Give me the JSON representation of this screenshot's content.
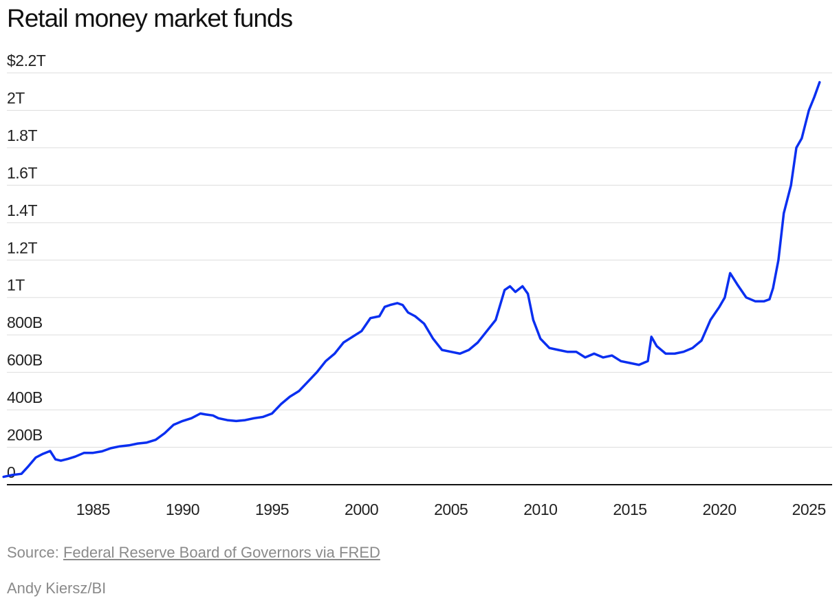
{
  "chart_data": {
    "type": "line",
    "title": "Retail money market funds",
    "xlabel": "",
    "ylabel": "",
    "y_unit": "billions USD",
    "xlim": [
      1979.8,
      2026.3
    ],
    "ylim": [
      0,
      2200
    ],
    "yticks": [
      {
        "value": 0,
        "label": "0"
      },
      {
        "value": 200,
        "label": "200B"
      },
      {
        "value": 400,
        "label": "400B"
      },
      {
        "value": 600,
        "label": "600B"
      },
      {
        "value": 800,
        "label": "800B"
      },
      {
        "value": 1000,
        "label": "1T"
      },
      {
        "value": 1200,
        "label": "1.2T"
      },
      {
        "value": 1400,
        "label": "1.4T"
      },
      {
        "value": 1600,
        "label": "1.6T"
      },
      {
        "value": 1800,
        "label": "1.8T"
      },
      {
        "value": 2000,
        "label": "2T"
      },
      {
        "value": 2200,
        "label": "$2.2T"
      }
    ],
    "xticks": [
      {
        "value": 1985,
        "label": "1985"
      },
      {
        "value": 1990,
        "label": "1990"
      },
      {
        "value": 1995,
        "label": "1995"
      },
      {
        "value": 2000,
        "label": "2000"
      },
      {
        "value": 2005,
        "label": "2005"
      },
      {
        "value": 2010,
        "label": "2010"
      },
      {
        "value": 2015,
        "label": "2015"
      },
      {
        "value": 2020,
        "label": "2020"
      },
      {
        "value": 2025,
        "label": "2025"
      }
    ],
    "grid": true,
    "series": [
      {
        "name": "Retail money market funds",
        "color": "#0a2ff0",
        "x": [
          1980.0,
          1980.5,
          1981.0,
          1981.4,
          1981.8,
          1982.2,
          1982.6,
          1982.9,
          1983.2,
          1983.6,
          1984.0,
          1984.5,
          1985.0,
          1985.5,
          1986.0,
          1986.5,
          1987.0,
          1987.5,
          1988.0,
          1988.5,
          1989.0,
          1989.5,
          1990.0,
          1990.5,
          1991.0,
          1991.3,
          1991.7,
          1992.0,
          1992.5,
          1993.0,
          1993.5,
          1994.0,
          1994.5,
          1995.0,
          1995.5,
          1996.0,
          1996.5,
          1997.0,
          1997.5,
          1998.0,
          1998.5,
          1999.0,
          1999.5,
          2000.0,
          2000.5,
          2001.0,
          2001.3,
          2001.6,
          2002.0,
          2002.3,
          2002.6,
          2003.0,
          2003.5,
          2004.0,
          2004.5,
          2005.0,
          2005.5,
          2006.0,
          2006.5,
          2007.0,
          2007.5,
          2008.0,
          2008.3,
          2008.6,
          2009.0,
          2009.3,
          2009.6,
          2010.0,
          2010.5,
          2011.0,
          2011.5,
          2012.0,
          2012.5,
          2013.0,
          2013.5,
          2014.0,
          2014.5,
          2015.0,
          2015.5,
          2016.0,
          2016.2,
          2016.5,
          2017.0,
          2017.5,
          2018.0,
          2018.5,
          2019.0,
          2019.5,
          2020.0,
          2020.3,
          2020.6,
          2021.0,
          2021.5,
          2022.0,
          2022.5,
          2022.8,
          2023.0,
          2023.3,
          2023.6,
          2024.0,
          2024.3,
          2024.6,
          2025.0,
          2025.3,
          2025.6
        ],
        "values": [
          42,
          52,
          58,
          100,
          145,
          165,
          180,
          135,
          128,
          138,
          150,
          170,
          170,
          178,
          195,
          205,
          210,
          220,
          225,
          240,
          275,
          320,
          340,
          355,
          380,
          375,
          370,
          355,
          345,
          340,
          345,
          355,
          362,
          380,
          430,
          470,
          500,
          550,
          600,
          660,
          700,
          760,
          790,
          820,
          890,
          900,
          950,
          960,
          970,
          960,
          920,
          900,
          860,
          780,
          720,
          710,
          700,
          720,
          760,
          820,
          880,
          1040,
          1060,
          1030,
          1060,
          1020,
          880,
          780,
          730,
          720,
          710,
          710,
          680,
          700,
          680,
          690,
          660,
          650,
          640,
          660,
          790,
          740,
          700,
          700,
          710,
          730,
          770,
          880,
          950,
          1000,
          1130,
          1070,
          1000,
          980,
          980,
          990,
          1050,
          1200,
          1450,
          1600,
          1800,
          1850,
          2000,
          2070,
          2150
        ]
      }
    ]
  },
  "source": {
    "prefix": "Source: ",
    "link_text": "Federal Reserve Board of Governors via FRED"
  },
  "credit": "Andy Kiersz/BI"
}
